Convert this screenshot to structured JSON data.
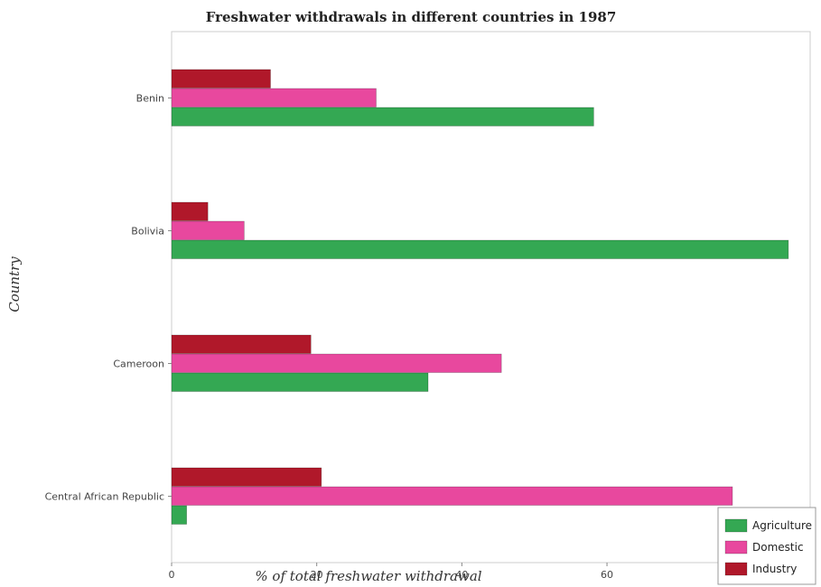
{
  "chart_data": {
    "type": "bar",
    "orientation": "horizontal",
    "title": "Freshwater withdrawals in different countries in 1987",
    "xlabel": "% of total freshwater withdrawal",
    "ylabel": "Country",
    "categories": [
      "Benin",
      "Bolivia",
      "Cameroon",
      "Central African Republic"
    ],
    "xlim": [
      0,
      88
    ],
    "xticks": [
      0,
      20,
      40,
      60,
      80
    ],
    "xtick_labels": [
      "0",
      "20",
      "40",
      "60",
      "80"
    ],
    "grid": false,
    "legend_position": "bottom-right",
    "series": [
      {
        "name": "Agriculture",
        "color": "#34a853",
        "values": [
          58.17,
          85.0,
          35.35,
          2.07
        ]
      },
      {
        "name": "Domestic",
        "color": "#e8489e",
        "values": [
          28.19,
          10.0,
          45.45,
          77.29
        ]
      },
      {
        "name": "Industry",
        "color": "#b0182a",
        "values": [
          13.63,
          5.0,
          19.2,
          20.64
        ]
      }
    ]
  }
}
